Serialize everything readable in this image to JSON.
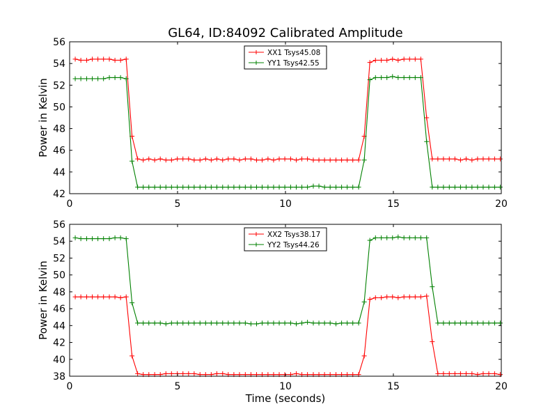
{
  "title": "GL64, ID:84092 Calibrated Amplitude",
  "chart_data": [
    {
      "type": "line",
      "title": "GL64, ID:84092 Calibrated Amplitude",
      "xlabel": "",
      "ylabel": "Power in Kelvin",
      "xlim": [
        0,
        20
      ],
      "ylim": [
        42,
        56
      ],
      "xticks": [
        0,
        5,
        10,
        15,
        20
      ],
      "yticks": [
        42,
        44,
        46,
        48,
        50,
        52,
        54,
        56
      ],
      "grid": false,
      "legend_position": "top-center",
      "series": [
        {
          "name": "XX1 Tsys45.08",
          "color": "#ff0000",
          "x": [
            0.26,
            0.52,
            0.79,
            1.05,
            1.31,
            1.57,
            1.84,
            2.1,
            2.36,
            2.62,
            2.89,
            3.15,
            3.41,
            3.67,
            3.94,
            4.2,
            4.46,
            4.72,
            4.99,
            5.25,
            5.51,
            5.77,
            6.04,
            6.3,
            6.56,
            6.82,
            7.09,
            7.35,
            7.61,
            7.87,
            8.14,
            8.4,
            8.66,
            8.92,
            9.19,
            9.45,
            9.71,
            9.97,
            10.24,
            10.5,
            10.76,
            11.02,
            11.29,
            11.55,
            11.81,
            12.07,
            12.34,
            12.6,
            12.86,
            13.12,
            13.39,
            13.65,
            13.91,
            14.17,
            14.44,
            14.7,
            14.96,
            15.22,
            15.49,
            15.75,
            16.01,
            16.27,
            16.54,
            16.8,
            17.06,
            17.32,
            17.59,
            17.85,
            18.11,
            18.37,
            18.64,
            18.9,
            19.16,
            19.42,
            19.69,
            19.95
          ],
          "y": [
            54.4,
            54.3,
            54.3,
            54.4,
            54.4,
            54.4,
            54.4,
            54.3,
            54.3,
            54.4,
            47.3,
            45.2,
            45.1,
            45.2,
            45.1,
            45.2,
            45.1,
            45.1,
            45.2,
            45.2,
            45.2,
            45.1,
            45.1,
            45.2,
            45.1,
            45.2,
            45.1,
            45.2,
            45.2,
            45.1,
            45.2,
            45.2,
            45.1,
            45.1,
            45.2,
            45.1,
            45.2,
            45.2,
            45.2,
            45.1,
            45.2,
            45.2,
            45.1,
            45.1,
            45.1,
            45.1,
            45.1,
            45.1,
            45.1,
            45.1,
            45.1,
            47.3,
            54.1,
            54.3,
            54.3,
            54.3,
            54.4,
            54.3,
            54.4,
            54.4,
            54.4,
            54.4,
            49.0,
            45.2,
            45.2,
            45.2,
            45.2,
            45.2,
            45.1,
            45.2,
            45.1,
            45.2,
            45.2,
            45.2,
            45.2,
            45.2
          ]
        },
        {
          "name": "YY1 Tsys42.55",
          "color": "#008000",
          "x": [
            0.26,
            0.52,
            0.79,
            1.05,
            1.31,
            1.57,
            1.84,
            2.1,
            2.36,
            2.62,
            2.89,
            3.15,
            3.41,
            3.67,
            3.94,
            4.2,
            4.46,
            4.72,
            4.99,
            5.25,
            5.51,
            5.77,
            6.04,
            6.3,
            6.56,
            6.82,
            7.09,
            7.35,
            7.61,
            7.87,
            8.14,
            8.4,
            8.66,
            8.92,
            9.19,
            9.45,
            9.71,
            9.97,
            10.24,
            10.5,
            10.76,
            11.02,
            11.29,
            11.55,
            11.81,
            12.07,
            12.34,
            12.6,
            12.86,
            13.12,
            13.39,
            13.65,
            13.91,
            14.17,
            14.44,
            14.7,
            14.96,
            15.22,
            15.49,
            15.75,
            16.01,
            16.27,
            16.54,
            16.8,
            17.06,
            17.32,
            17.59,
            17.85,
            18.11,
            18.37,
            18.64,
            18.9,
            19.16,
            19.42,
            19.69,
            19.95
          ],
          "y": [
            52.6,
            52.6,
            52.6,
            52.6,
            52.6,
            52.6,
            52.7,
            52.7,
            52.7,
            52.6,
            45.0,
            42.6,
            42.6,
            42.6,
            42.6,
            42.6,
            42.6,
            42.6,
            42.6,
            42.6,
            42.6,
            42.6,
            42.6,
            42.6,
            42.6,
            42.6,
            42.6,
            42.6,
            42.6,
            42.6,
            42.6,
            42.6,
            42.6,
            42.6,
            42.6,
            42.6,
            42.6,
            42.6,
            42.6,
            42.6,
            42.6,
            42.6,
            42.7,
            42.7,
            42.6,
            42.6,
            42.6,
            42.6,
            42.6,
            42.6,
            42.6,
            45.1,
            52.5,
            52.7,
            52.7,
            52.7,
            52.8,
            52.7,
            52.7,
            52.7,
            52.7,
            52.7,
            46.8,
            42.6,
            42.6,
            42.6,
            42.6,
            42.6,
            42.6,
            42.6,
            42.6,
            42.6,
            42.6,
            42.6,
            42.6,
            42.6
          ]
        }
      ]
    },
    {
      "type": "line",
      "title": "",
      "xlabel": "Time (seconds)",
      "ylabel": "Power in Kelvin",
      "xlim": [
        0,
        20
      ],
      "ylim": [
        38,
        56
      ],
      "xticks": [
        0,
        5,
        10,
        15,
        20
      ],
      "yticks": [
        38,
        40,
        42,
        44,
        46,
        48,
        50,
        52,
        54,
        56
      ],
      "grid": false,
      "legend_position": "top-center",
      "series": [
        {
          "name": "XX2 Tsys38.17",
          "color": "#ff0000",
          "x": [
            0.26,
            0.52,
            0.79,
            1.05,
            1.31,
            1.57,
            1.84,
            2.1,
            2.36,
            2.62,
            2.89,
            3.15,
            3.41,
            3.67,
            3.94,
            4.2,
            4.46,
            4.72,
            4.99,
            5.25,
            5.51,
            5.77,
            6.04,
            6.3,
            6.56,
            6.82,
            7.09,
            7.35,
            7.61,
            7.87,
            8.14,
            8.4,
            8.66,
            8.92,
            9.19,
            9.45,
            9.71,
            9.97,
            10.24,
            10.5,
            10.76,
            11.02,
            11.29,
            11.55,
            11.81,
            12.07,
            12.34,
            12.6,
            12.86,
            13.12,
            13.39,
            13.65,
            13.91,
            14.17,
            14.44,
            14.7,
            14.96,
            15.22,
            15.49,
            15.75,
            16.01,
            16.27,
            16.54,
            16.8,
            17.06,
            17.32,
            17.59,
            17.85,
            18.11,
            18.37,
            18.64,
            18.9,
            19.16,
            19.42,
            19.69,
            19.95
          ],
          "y": [
            47.4,
            47.4,
            47.4,
            47.4,
            47.4,
            47.4,
            47.4,
            47.4,
            47.3,
            47.4,
            40.4,
            38.3,
            38.2,
            38.2,
            38.2,
            38.2,
            38.3,
            38.3,
            38.3,
            38.3,
            38.3,
            38.3,
            38.2,
            38.2,
            38.2,
            38.3,
            38.3,
            38.2,
            38.2,
            38.2,
            38.2,
            38.2,
            38.2,
            38.2,
            38.2,
            38.2,
            38.2,
            38.2,
            38.2,
            38.3,
            38.2,
            38.2,
            38.2,
            38.2,
            38.2,
            38.2,
            38.2,
            38.2,
            38.2,
            38.2,
            38.2,
            40.4,
            47.1,
            47.3,
            47.3,
            47.4,
            47.4,
            47.3,
            47.4,
            47.4,
            47.4,
            47.4,
            47.5,
            42.1,
            38.3,
            38.3,
            38.3,
            38.3,
            38.3,
            38.3,
            38.3,
            38.2,
            38.3,
            38.3,
            38.3,
            38.2
          ]
        },
        {
          "name": "YY2 Tsys44.26",
          "color": "#008000",
          "x": [
            0.26,
            0.52,
            0.79,
            1.05,
            1.31,
            1.57,
            1.84,
            2.1,
            2.36,
            2.62,
            2.89,
            3.15,
            3.41,
            3.67,
            3.94,
            4.2,
            4.46,
            4.72,
            4.99,
            5.25,
            5.51,
            5.77,
            6.04,
            6.3,
            6.56,
            6.82,
            7.09,
            7.35,
            7.61,
            7.87,
            8.14,
            8.4,
            8.66,
            8.92,
            9.19,
            9.45,
            9.71,
            9.97,
            10.24,
            10.5,
            10.76,
            11.02,
            11.29,
            11.55,
            11.81,
            12.07,
            12.34,
            12.6,
            12.86,
            13.12,
            13.39,
            13.65,
            13.91,
            14.17,
            14.44,
            14.7,
            14.96,
            15.22,
            15.49,
            15.75,
            16.01,
            16.27,
            16.54,
            16.8,
            17.06,
            17.32,
            17.59,
            17.85,
            18.11,
            18.37,
            18.64,
            18.9,
            19.16,
            19.42,
            19.69,
            19.95
          ],
          "y": [
            54.4,
            54.3,
            54.3,
            54.3,
            54.3,
            54.3,
            54.3,
            54.4,
            54.4,
            54.3,
            46.7,
            44.3,
            44.3,
            44.3,
            44.3,
            44.3,
            44.2,
            44.3,
            44.3,
            44.3,
            44.3,
            44.3,
            44.3,
            44.3,
            44.3,
            44.3,
            44.3,
            44.3,
            44.3,
            44.3,
            44.3,
            44.2,
            44.2,
            44.3,
            44.3,
            44.3,
            44.3,
            44.3,
            44.3,
            44.2,
            44.3,
            44.4,
            44.3,
            44.3,
            44.3,
            44.3,
            44.2,
            44.3,
            44.3,
            44.3,
            44.3,
            46.8,
            54.1,
            54.4,
            54.4,
            54.4,
            54.4,
            54.5,
            54.4,
            54.4,
            54.4,
            54.4,
            54.4,
            48.6,
            44.3,
            44.3,
            44.3,
            44.3,
            44.3,
            44.3,
            44.3,
            44.3,
            44.3,
            44.3,
            44.3,
            44.3
          ]
        }
      ]
    }
  ]
}
